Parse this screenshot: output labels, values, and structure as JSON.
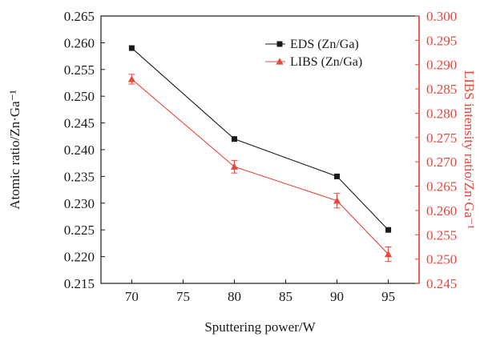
{
  "chart_data": {
    "type": "line",
    "xlabel": "Sputtering power/W",
    "ylabel_left": "Atomic ratio/Zn·Ga⁻¹",
    "ylabel_right": "LIBS intensity ratio/Zn·Ga⁻¹",
    "x_ticks": [
      70,
      75,
      80,
      85,
      90,
      95
    ],
    "x_tick_labels": [
      "70",
      "75",
      "80",
      "85",
      "90",
      "95"
    ],
    "xlim": [
      67,
      98
    ],
    "ylim_left": [
      0.215,
      0.265
    ],
    "ylim_right": [
      0.245,
      0.3
    ],
    "y_ticks_left": [
      "0.215",
      "0.220",
      "0.225",
      "0.230",
      "0.235",
      "0.240",
      "0.245",
      "0.250",
      "0.255",
      "0.260",
      "0.265"
    ],
    "y_ticks_right": [
      "0.245",
      "0.250",
      "0.255",
      "0.260",
      "0.265",
      "0.270",
      "0.275",
      "0.280",
      "0.285",
      "0.290",
      "0.295",
      "0.300"
    ],
    "legend_position": "top-right",
    "series": [
      {
        "name": "EDS (Zn/Ga)",
        "axis": "left",
        "color": "#1a1a1a",
        "marker": "square",
        "x": [
          70,
          80,
          90,
          95
        ],
        "y": [
          0.259,
          0.242,
          0.235,
          0.225
        ]
      },
      {
        "name": "LIBS (Zn/Ga)",
        "axis": "right",
        "color": "#e8473d",
        "marker": "triangle",
        "x": [
          70,
          80,
          90,
          95
        ],
        "y": [
          0.287,
          0.269,
          0.262,
          0.251
        ],
        "error": [
          0.001,
          0.0013,
          0.0015,
          0.0015
        ]
      }
    ],
    "right_axis_color": "#e8473d"
  }
}
